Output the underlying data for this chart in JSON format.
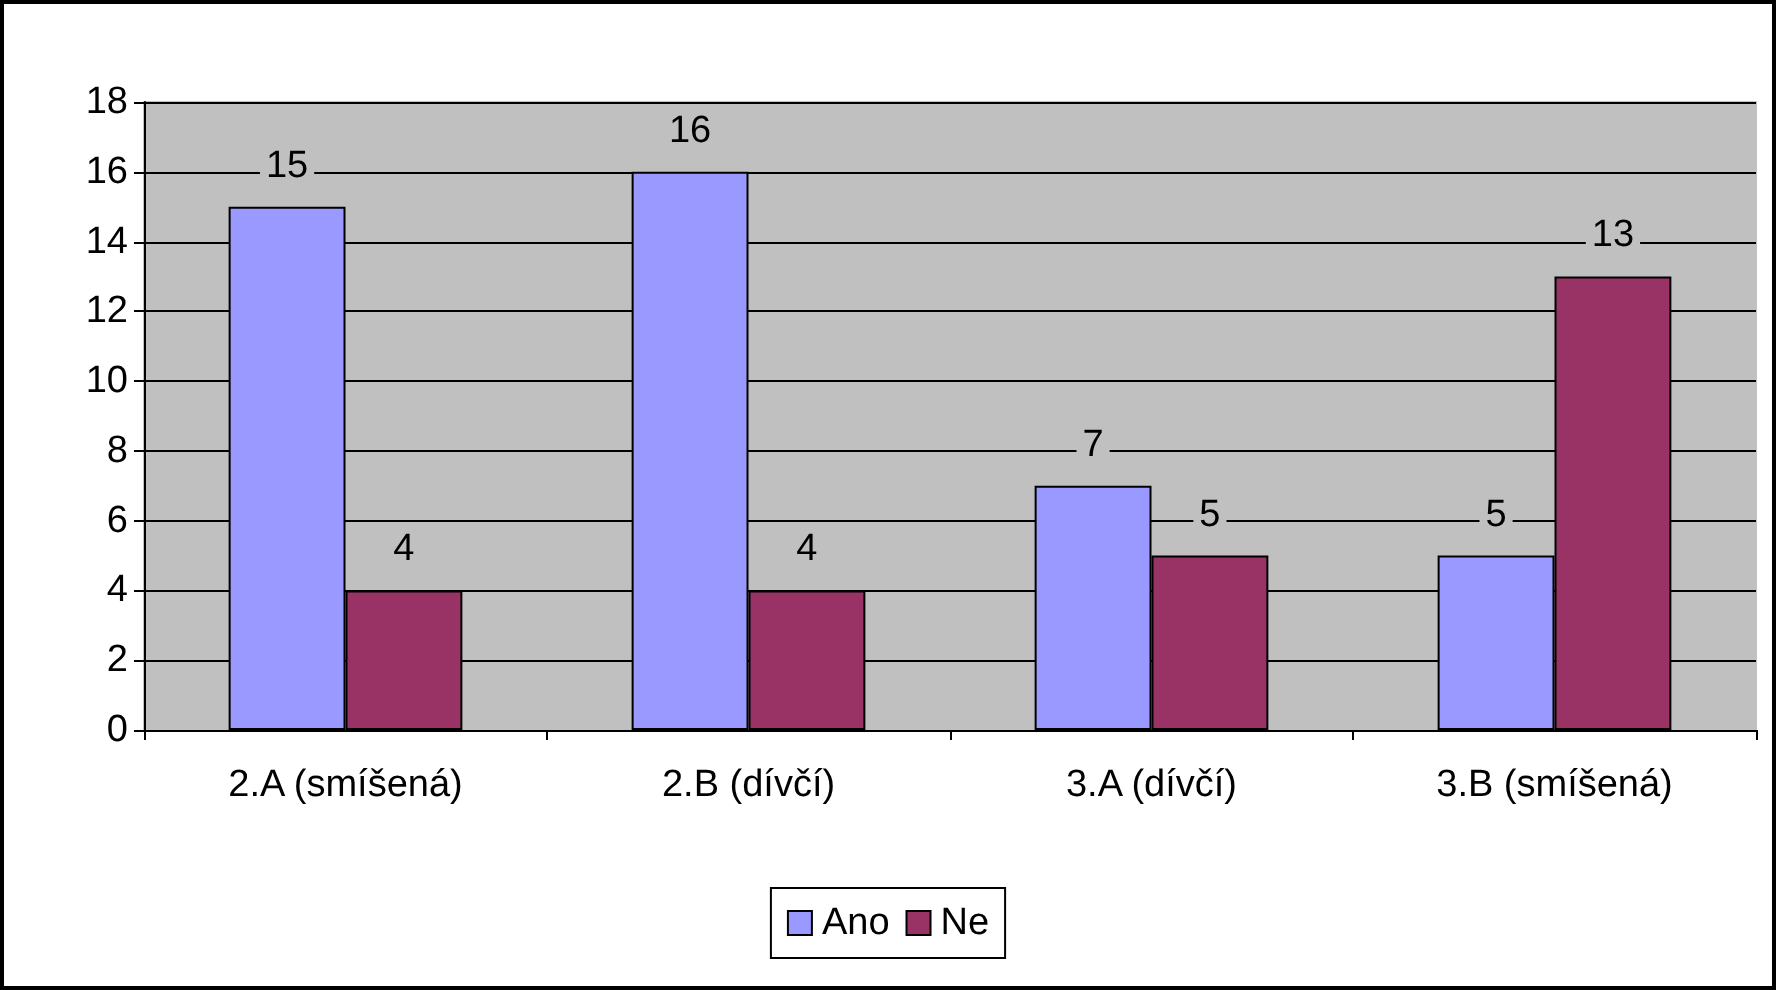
{
  "chart_data": {
    "type": "bar",
    "categories": [
      "2.A (smíšená)",
      "2.B (dívčí)",
      "3.A (dívčí)",
      "3.B (smíšená)"
    ],
    "series": [
      {
        "name": "Ano",
        "color": "#9999ff",
        "values": [
          15,
          16,
          7,
          5
        ]
      },
      {
        "name": "Ne",
        "color": "#993366",
        "values": [
          4,
          4,
          5,
          13
        ]
      }
    ],
    "ylim": [
      0,
      18
    ],
    "yticks": [
      0,
      2,
      4,
      6,
      8,
      10,
      12,
      14,
      16,
      18
    ],
    "grid": "y",
    "legend": "bottom",
    "data_labels": true
  }
}
